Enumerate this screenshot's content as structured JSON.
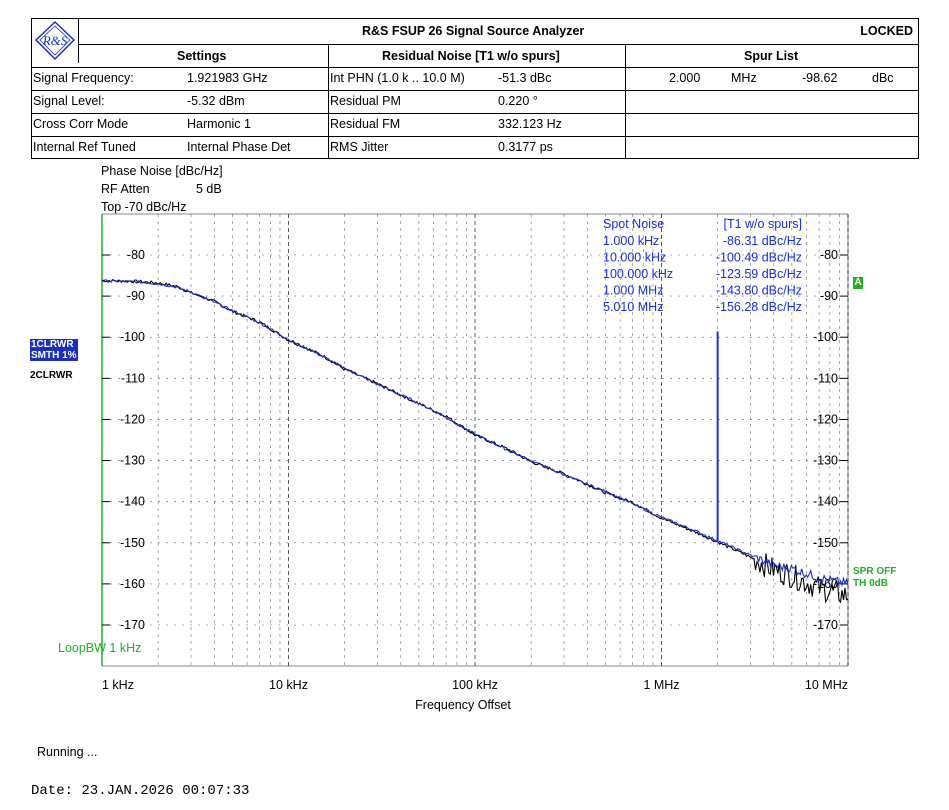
{
  "header": {
    "title": "R&S FSUP 26 Signal Source Analyzer",
    "status": "LOCKED",
    "logo_text": "R&S",
    "settings_title": "Settings",
    "residual_title": "Residual Noise [T1 w/o spurs]",
    "spur_title": "Spur List",
    "settings": [
      {
        "label": "Signal Frequency:",
        "value": "1.921983 GHz"
      },
      {
        "label": "Signal Level:",
        "value": "-5.32 dBm"
      },
      {
        "label": "Cross Corr Mode",
        "value": "Harmonic 1"
      },
      {
        "label": "Internal Ref Tuned",
        "value": "Internal Phase Det"
      }
    ],
    "residual": [
      {
        "label": "Int PHN (1.0 k .. 10.0 M)",
        "value": "-51.3 dBc"
      },
      {
        "label": "Residual PM",
        "value": "0.220 °"
      },
      {
        "label": "Residual FM",
        "value": "332.123 Hz"
      },
      {
        "label": "RMS Jitter",
        "value": "0.3177 ps"
      }
    ],
    "spurs": [
      {
        "freq": "2.000",
        "unit": "MHz",
        "level": "-98.62",
        "level_unit": "dBc"
      }
    ]
  },
  "plot_info": {
    "line1": "Phase Noise [dBc/Hz]",
    "line2_label": "RF Atten",
    "line2_value": "5 dB",
    "line3": "Top -70 dBc/Hz"
  },
  "traces": {
    "trace1_line1": "1CLRWR",
    "trace1_line2": "SMTH 1%",
    "trace2": "2CLRWR",
    "marker_a": "A",
    "spr_off": "SPR OFF",
    "th": "TH 0dB",
    "loop_bw": "LoopBW 1 kHz"
  },
  "spot_noise": {
    "title": "Spot Noise",
    "title2": "[T1 w/o spurs]",
    "rows": [
      {
        "freq": "1.000 kHz",
        "value": "-86.31 dBc/Hz"
      },
      {
        "freq": "10.000 kHz",
        "value": "-100.49 dBc/Hz"
      },
      {
        "freq": "100.000 kHz",
        "value": "-123.59 dBc/Hz"
      },
      {
        "freq": "1.000 MHz",
        "value": "-143.80 dBc/Hz"
      },
      {
        "freq": "5.010 MHz",
        "value": "-156.28 dBc/Hz"
      }
    ]
  },
  "status": {
    "running": "Running ...",
    "date": "Date: 23.JAN.2026  00:07:33"
  },
  "colors": {
    "trace1": "#1a2fc0",
    "trace2": "#000000",
    "spur": "#1530e0",
    "loop": "#22b022",
    "grid": "#000000"
  },
  "chart_data": {
    "type": "line",
    "xscale": "log",
    "xlabel": "Frequency Offset",
    "ylabel": "",
    "xlim": [
      1000,
      10000000
    ],
    "ylim": [
      -180,
      -70
    ],
    "x_tick_labels": [
      "1 kHz",
      "10 kHz",
      "100 kHz",
      "1 MHz",
      "10 MHz"
    ],
    "x_ticks": [
      1000,
      10000,
      100000,
      1000000,
      10000000
    ],
    "y_ticks": [
      -80,
      -90,
      -100,
      -110,
      -120,
      -130,
      -140,
      -150,
      -160,
      -170
    ],
    "y_tick_labels": [
      "-80",
      "-90",
      "-100",
      "-110",
      "-120",
      "-130",
      "-140",
      "-150",
      "-160",
      "-170"
    ],
    "series": [
      {
        "name": "1CLRWR",
        "x": [
          1000,
          1500,
          2000,
          2500,
          3000,
          4000,
          5000,
          7000,
          10000,
          15000,
          20000,
          30000,
          50000,
          70000,
          100000,
          150000,
          200000,
          300000,
          500000,
          700000,
          1000000,
          1500000,
          2000000,
          3000000,
          4000000,
          5000000,
          7000000,
          10000000
        ],
        "y": [
          -86.3,
          -86.5,
          -87.0,
          -87.8,
          -89.0,
          -91.5,
          -93.5,
          -96.5,
          -100.5,
          -104.5,
          -107.5,
          -111.5,
          -116.0,
          -119.5,
          -123.6,
          -127.5,
          -130.0,
          -133.5,
          -137.5,
          -140.5,
          -143.8,
          -147.0,
          -149.5,
          -153.0,
          -155.5,
          -156.3,
          -158.5,
          -160.0
        ]
      },
      {
        "name": "2CLRWR",
        "x": [
          1000,
          1500,
          2000,
          2500,
          3000,
          4000,
          5000,
          7000,
          10000,
          15000,
          20000,
          30000,
          50000,
          70000,
          100000,
          150000,
          200000,
          300000,
          500000,
          700000,
          1000000,
          1500000,
          2000000,
          3000000,
          4000000,
          5000000,
          7000000,
          10000000
        ],
        "y": [
          -86.2,
          -86.4,
          -86.8,
          -87.6,
          -89.2,
          -91.3,
          -93.7,
          -96.3,
          -100.7,
          -104.3,
          -107.8,
          -111.3,
          -116.2,
          -119.2,
          -123.8,
          -127.2,
          -130.3,
          -133.2,
          -137.8,
          -140.2,
          -144.0,
          -147.3,
          -149.8,
          -153.5,
          -156.5,
          -158.0,
          -161.0,
          -163.0
        ]
      }
    ],
    "spurs": [
      {
        "x": 2000000,
        "y": -98.62
      }
    ]
  }
}
